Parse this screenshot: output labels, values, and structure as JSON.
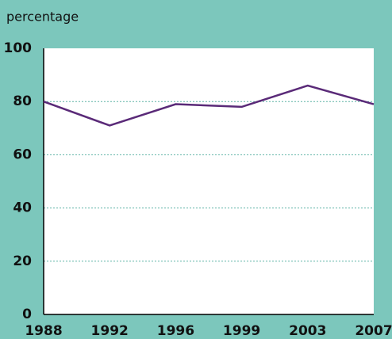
{
  "chart_data": {
    "type": "line",
    "y_label": "percentage",
    "categories": [
      "1988",
      "1992",
      "1996",
      "1999",
      "2003",
      "2007"
    ],
    "series": [
      {
        "name": "",
        "color": "#5a2a78",
        "values": [
          80,
          71,
          79,
          78,
          86,
          79
        ]
      }
    ],
    "ylim": [
      0,
      100
    ],
    "yticks": [
      0,
      20,
      40,
      60,
      80,
      100
    ],
    "grid": true
  }
}
